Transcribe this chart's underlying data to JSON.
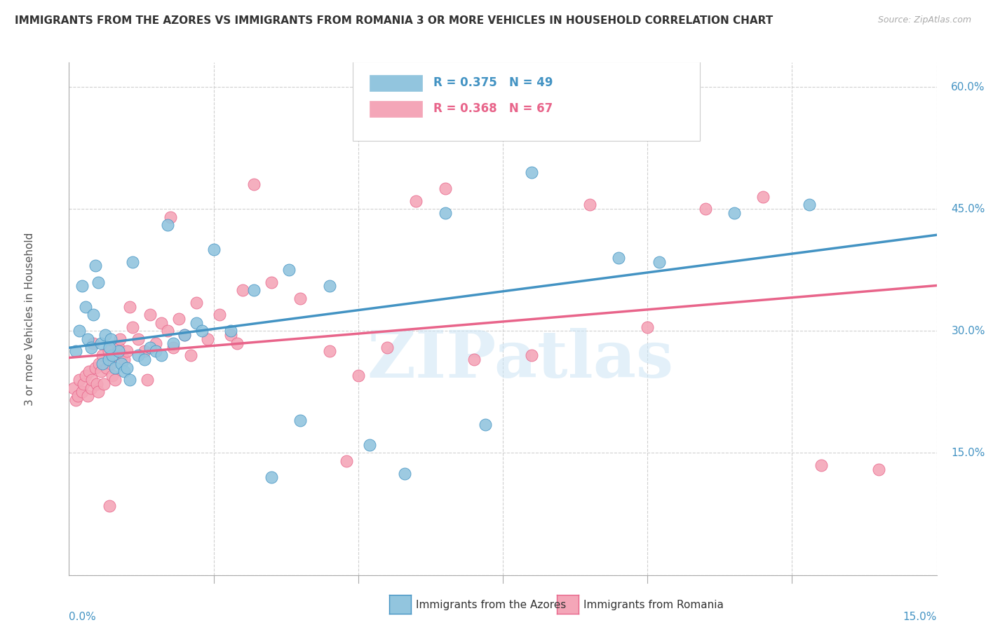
{
  "title": "IMMIGRANTS FROM THE AZORES VS IMMIGRANTS FROM ROMANIA 3 OR MORE VEHICLES IN HOUSEHOLD CORRELATION CHART",
  "source": "Source: ZipAtlas.com",
  "ylabel_label": "3 or more Vehicles in Household",
  "legend_label1": "Immigrants from the Azores",
  "legend_label2": "Immigrants from Romania",
  "R1": 0.375,
  "N1": 49,
  "R2": 0.368,
  "N2": 67,
  "color_azores": "#92c5de",
  "color_romania": "#f4a6b8",
  "color_line_azores": "#4393c3",
  "color_line_romania": "#e8648a",
  "xmin": 0.0,
  "xmax": 15.0,
  "ymin": 0.0,
  "ymax": 63.0,
  "yticks": [
    0,
    15,
    30,
    45,
    60
  ],
  "ytick_labels": [
    "0.0%",
    "15.0%",
    "30.0%",
    "45.0%",
    "60.0%"
  ],
  "xtick_labels": [
    "0.0%",
    "15.0%"
  ],
  "watermark_text": "ZIPatlas",
  "azores_x": [
    0.12,
    0.18,
    0.22,
    0.28,
    0.32,
    0.38,
    0.42,
    0.45,
    0.5,
    0.55,
    0.58,
    0.62,
    0.68,
    0.72,
    0.75,
    0.8,
    0.85,
    0.9,
    0.95,
    1.0,
    1.05,
    1.1,
    1.2,
    1.3,
    1.4,
    1.5,
    1.6,
    1.8,
    2.0,
    2.2,
    2.5,
    2.8,
    3.2,
    3.8,
    4.5,
    5.2,
    6.5,
    7.2,
    8.0,
    9.5,
    10.2,
    11.5,
    12.8,
    3.5,
    4.0,
    2.3,
    1.7,
    0.7,
    5.8
  ],
  "azores_y": [
    27.5,
    30.0,
    35.5,
    33.0,
    29.0,
    28.0,
    32.0,
    38.0,
    36.0,
    28.5,
    26.0,
    29.5,
    26.5,
    29.0,
    27.0,
    25.5,
    27.5,
    26.0,
    25.0,
    25.5,
    24.0,
    38.5,
    27.0,
    26.5,
    28.0,
    27.5,
    27.0,
    28.5,
    29.5,
    31.0,
    40.0,
    30.0,
    35.0,
    37.5,
    35.5,
    16.0,
    44.5,
    18.5,
    49.5,
    39.0,
    38.5,
    44.5,
    45.5,
    12.0,
    19.0,
    30.0,
    43.0,
    28.0,
    12.5
  ],
  "romania_x": [
    0.08,
    0.12,
    0.15,
    0.18,
    0.22,
    0.25,
    0.28,
    0.32,
    0.35,
    0.38,
    0.4,
    0.42,
    0.45,
    0.48,
    0.5,
    0.52,
    0.55,
    0.58,
    0.6,
    0.65,
    0.68,
    0.72,
    0.75,
    0.8,
    0.85,
    0.88,
    0.92,
    0.95,
    1.0,
    1.05,
    1.1,
    1.2,
    1.3,
    1.4,
    1.5,
    1.6,
    1.7,
    1.8,
    1.9,
    2.0,
    2.2,
    2.4,
    2.6,
    2.8,
    3.0,
    3.5,
    4.0,
    4.5,
    5.0,
    5.5,
    6.0,
    6.5,
    7.0,
    8.0,
    9.0,
    10.0,
    11.0,
    12.0,
    13.0,
    14.0,
    3.2,
    2.1,
    1.35,
    0.7,
    1.75,
    2.9,
    4.8
  ],
  "romania_y": [
    23.0,
    21.5,
    22.0,
    24.0,
    22.5,
    23.5,
    24.5,
    22.0,
    25.0,
    23.0,
    24.0,
    28.5,
    25.5,
    23.5,
    22.5,
    26.0,
    25.0,
    27.0,
    23.5,
    25.5,
    27.5,
    26.0,
    24.5,
    24.0,
    28.0,
    29.0,
    27.0,
    26.5,
    27.5,
    33.0,
    30.5,
    29.0,
    27.5,
    32.0,
    28.5,
    31.0,
    30.0,
    28.0,
    31.5,
    29.5,
    33.5,
    29.0,
    32.0,
    29.5,
    35.0,
    36.0,
    34.0,
    27.5,
    24.5,
    28.0,
    46.0,
    47.5,
    26.5,
    27.0,
    45.5,
    30.5,
    45.0,
    46.5,
    13.5,
    13.0,
    48.0,
    27.0,
    24.0,
    8.5,
    44.0,
    28.5,
    14.0
  ]
}
